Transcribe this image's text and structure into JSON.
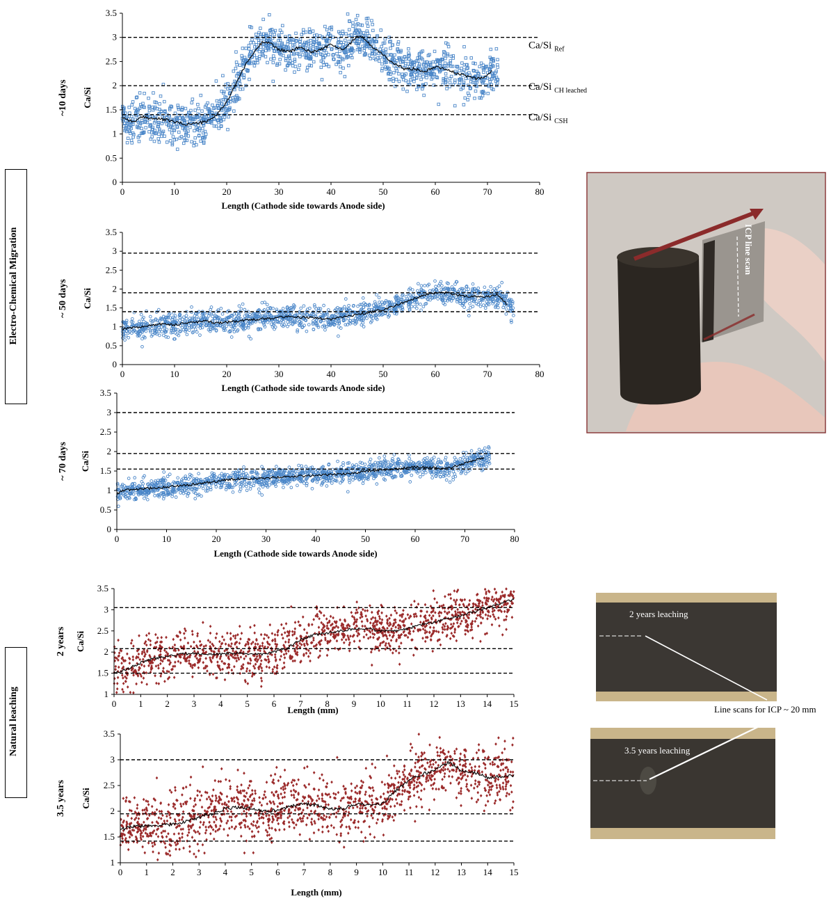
{
  "group_labels": {
    "ecm": "Electro-Chemical Migration",
    "natural": "Natural leaching"
  },
  "photos": {
    "ecm_photo": {
      "label": "ICP line scan"
    },
    "nat_photo_2y": {
      "label": "2 years leaching"
    },
    "nat_photo_35y": {
      "label": "3.5 years leaching"
    },
    "caption": "Line scans for ICP ~ 20 mm"
  },
  "colors": {
    "blue_marker": "#4a86c8",
    "red_marker": "#9b2a2a",
    "trend": "#000000",
    "ref_line": "#000000",
    "photo_frame": "#8b3a3a",
    "arrow": "#8b2b2b"
  },
  "chart_data": [
    {
      "id": "ecm10",
      "type": "scatter",
      "title": "",
      "side_label": "~10 days",
      "xlabel": "Length (Cathode side towards Anode side)",
      "ylabel": "Ca/Si",
      "xlim": [
        0,
        80
      ],
      "ylim": [
        0,
        3.5
      ],
      "xticks": [
        0,
        10,
        20,
        30,
        40,
        50,
        60,
        70,
        80
      ],
      "yticks": [
        0,
        0.5,
        1,
        1.5,
        2,
        2.5,
        3,
        3.5
      ],
      "grid": false,
      "marker": "open-square",
      "color": "#4a86c8",
      "x_extent": [
        0,
        72
      ],
      "hlines": [
        {
          "y": 3.0,
          "label": "Ca/Si",
          "sub": "Ref"
        },
        {
          "y": 2.0,
          "label": "Ca/Si",
          "sub": "CH leached"
        },
        {
          "y": 1.4,
          "label": "Ca/Si",
          "sub": "CSH"
        }
      ],
      "trend": {
        "x": [
          0,
          2,
          4,
          6,
          8,
          10,
          12,
          14,
          16,
          17,
          18,
          20,
          22,
          24,
          26,
          27,
          28,
          30,
          32,
          34,
          36,
          38,
          40,
          42,
          44,
          45,
          46,
          48,
          50,
          52,
          54,
          56,
          58,
          60,
          62,
          64,
          66,
          68,
          70,
          71
        ],
        "y": [
          1.35,
          1.25,
          1.35,
          1.32,
          1.3,
          1.25,
          1.2,
          1.22,
          1.25,
          1.3,
          1.4,
          1.65,
          2.1,
          2.5,
          2.8,
          2.92,
          2.9,
          2.75,
          2.7,
          2.8,
          2.7,
          2.75,
          2.85,
          2.75,
          2.9,
          3.05,
          3.0,
          2.8,
          2.65,
          2.45,
          2.35,
          2.35,
          2.3,
          2.4,
          2.35,
          2.25,
          2.2,
          2.15,
          2.2,
          2.35
        ]
      },
      "noise": 0.22
    },
    {
      "id": "ecm50",
      "type": "scatter",
      "title": "",
      "side_label": "~ 50 days",
      "xlabel": "Length (Cathode side towards Anode side)",
      "ylabel": "Ca/Si",
      "xlim": [
        0,
        80
      ],
      "ylim": [
        0,
        3.5
      ],
      "xticks": [
        0,
        10,
        20,
        30,
        40,
        50,
        60,
        70,
        80
      ],
      "yticks": [
        0,
        0.5,
        1,
        1.5,
        2,
        2.5,
        3,
        3.5
      ],
      "grid": false,
      "marker": "open-circle",
      "color": "#4a86c8",
      "x_extent": [
        0,
        75
      ],
      "hlines": [
        {
          "y": 2.95
        },
        {
          "y": 1.9
        },
        {
          "y": 1.4
        }
      ],
      "trend": {
        "x": [
          0,
          2,
          4,
          6,
          8,
          10,
          12,
          14,
          16,
          18,
          20,
          22,
          24,
          26,
          28,
          30,
          32,
          34,
          36,
          38,
          40,
          42,
          44,
          46,
          48,
          50,
          52,
          54,
          56,
          58,
          60,
          62,
          64,
          66,
          68,
          70,
          72,
          74
        ],
        "y": [
          0.95,
          0.98,
          1.0,
          1.05,
          1.08,
          1.05,
          1.1,
          1.12,
          1.15,
          1.1,
          1.12,
          1.15,
          1.18,
          1.2,
          1.22,
          1.25,
          1.28,
          1.25,
          1.25,
          1.22,
          1.2,
          1.25,
          1.3,
          1.35,
          1.4,
          1.45,
          1.55,
          1.65,
          1.75,
          1.85,
          1.9,
          1.9,
          1.85,
          1.8,
          1.8,
          1.8,
          1.85,
          1.55
        ]
      },
      "noise": 0.16
    },
    {
      "id": "ecm70",
      "type": "scatter",
      "title": "",
      "side_label": "~ 70 days",
      "xlabel": "Length (Cathode side towards Anode side)",
      "ylabel": "Ca/Si",
      "xlim": [
        0,
        80
      ],
      "ylim": [
        0,
        3.5
      ],
      "xticks": [
        0,
        10,
        20,
        30,
        40,
        50,
        60,
        70,
        80
      ],
      "yticks": [
        0,
        0.5,
        1,
        1.5,
        2,
        2.5,
        3,
        3.5
      ],
      "grid": false,
      "marker": "open-circle",
      "color": "#4a86c8",
      "x_extent": [
        0,
        75
      ],
      "hlines": [
        {
          "y": 3.0
        },
        {
          "y": 1.95
        },
        {
          "y": 1.55
        }
      ],
      "trend": {
        "x": [
          0,
          1,
          3,
          6,
          9,
          12,
          15,
          18,
          21,
          24,
          27,
          30,
          33,
          36,
          39,
          42,
          45,
          48,
          50,
          52,
          55,
          58,
          60,
          62,
          64,
          66,
          68,
          70,
          72,
          74
        ],
        "y": [
          0.9,
          1.0,
          1.02,
          1.05,
          1.08,
          1.12,
          1.15,
          1.2,
          1.25,
          1.3,
          1.3,
          1.32,
          1.35,
          1.37,
          1.38,
          1.4,
          1.42,
          1.45,
          1.5,
          1.52,
          1.55,
          1.58,
          1.6,
          1.6,
          1.58,
          1.55,
          1.62,
          1.7,
          1.78,
          1.85
        ]
      },
      "noise": 0.13
    },
    {
      "id": "nat2",
      "type": "scatter",
      "title": "",
      "side_label": "2 years",
      "xlabel": "Length (mm)",
      "ylabel": "Ca/Si",
      "xlim": [
        0,
        15
      ],
      "ylim": [
        1,
        3.5
      ],
      "xticks": [
        0,
        1,
        2,
        3,
        4,
        5,
        6,
        7,
        8,
        9,
        10,
        11,
        12,
        13,
        14,
        15
      ],
      "yticks": [
        1,
        1.5,
        2,
        2.5,
        3,
        3.5
      ],
      "grid": false,
      "marker": "filled-diamond",
      "color": "#9b2a2a",
      "x_extent": [
        0,
        15
      ],
      "hlines": [
        {
          "y": 3.05
        },
        {
          "y": 2.08
        },
        {
          "y": 1.5
        }
      ],
      "trend": {
        "x": [
          0,
          0.5,
          1,
          1.5,
          2,
          2.5,
          3,
          3.5,
          4,
          4.5,
          5,
          5.5,
          6,
          6.5,
          7,
          7.5,
          8,
          8.5,
          9,
          9.5,
          10,
          10.5,
          11,
          11.5,
          12,
          12.5,
          13,
          13.5,
          14,
          14.5,
          15
        ],
        "y": [
          1.5,
          1.6,
          1.75,
          1.85,
          1.9,
          1.95,
          1.97,
          1.95,
          1.95,
          1.98,
          1.95,
          1.95,
          2.0,
          2.1,
          2.3,
          2.4,
          2.45,
          2.5,
          2.55,
          2.55,
          2.5,
          2.5,
          2.55,
          2.65,
          2.7,
          2.8,
          2.85,
          2.95,
          3.05,
          3.15,
          3.25
        ]
      },
      "noise": 0.28
    },
    {
      "id": "nat35",
      "type": "scatter",
      "title": "",
      "side_label": "3.5 years",
      "xlabel": "Length (mm)",
      "ylabel": "Ca/Si",
      "xlim": [
        0,
        15
      ],
      "ylim": [
        1,
        3.5
      ],
      "xticks": [
        0,
        1,
        2,
        3,
        4,
        5,
        6,
        7,
        8,
        9,
        10,
        11,
        12,
        13,
        14,
        15
      ],
      "yticks": [
        1,
        1.5,
        2,
        2.5,
        3,
        3.5
      ],
      "grid": false,
      "marker": "filled-diamond",
      "color": "#9b2a2a",
      "x_extent": [
        0,
        15
      ],
      "hlines": [
        {
          "y": 3.0
        },
        {
          "y": 1.95
        },
        {
          "y": 1.42
        }
      ],
      "trend": {
        "x": [
          0,
          0.5,
          1,
          1.5,
          2,
          2.5,
          3,
          3.5,
          4,
          4.5,
          5,
          5.5,
          6,
          6.5,
          7,
          7.5,
          8,
          8.5,
          9,
          9.5,
          10,
          10.5,
          11,
          11.5,
          12,
          12.5,
          13,
          13.5,
          14,
          14.5,
          15
        ],
        "y": [
          1.65,
          1.7,
          1.72,
          1.72,
          1.75,
          1.8,
          1.88,
          1.95,
          2.05,
          2.08,
          2.05,
          2.0,
          2.02,
          2.1,
          2.15,
          2.12,
          2.05,
          2.05,
          2.15,
          2.12,
          2.15,
          2.4,
          2.6,
          2.72,
          2.8,
          2.95,
          2.8,
          2.75,
          2.65,
          2.68,
          2.7
        ]
      },
      "noise": 0.3
    }
  ]
}
